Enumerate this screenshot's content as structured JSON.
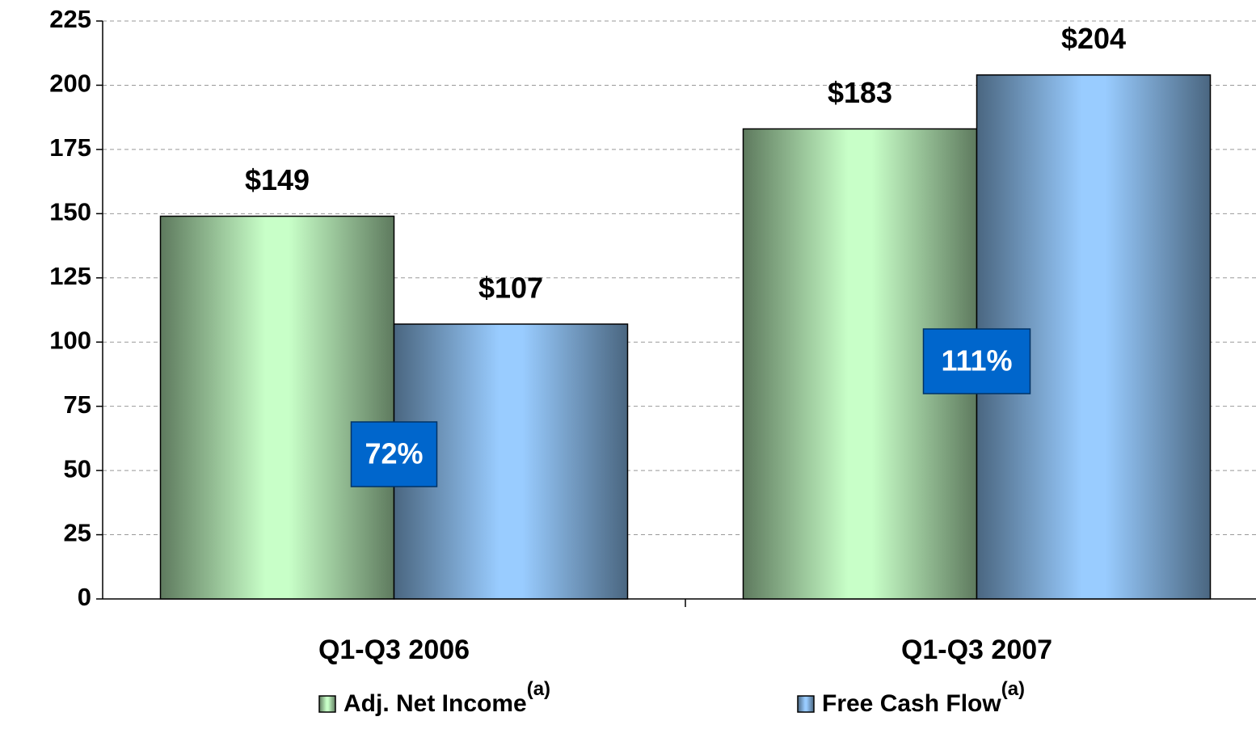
{
  "chart_data": {
    "type": "bar",
    "categories": [
      "Q1-Q3 2006",
      "Q1-Q3 2007"
    ],
    "series": [
      {
        "name": "Adj. Net Income",
        "note": "(a)",
        "color": "#c8ffc8",
        "values": [
          149,
          183
        ],
        "value_labels": [
          "$149",
          "$183"
        ]
      },
      {
        "name": "Free Cash Flow",
        "note": "(a)",
        "color": "#99ccff",
        "values": [
          107,
          204
        ],
        "value_labels": [
          "$107",
          "$204"
        ]
      }
    ],
    "annotations": [
      "72%",
      "111%"
    ],
    "ylim": [
      0,
      225
    ],
    "yticks": [
      0,
      25,
      50,
      75,
      100,
      125,
      150,
      175,
      200,
      225
    ],
    "grid": true
  }
}
